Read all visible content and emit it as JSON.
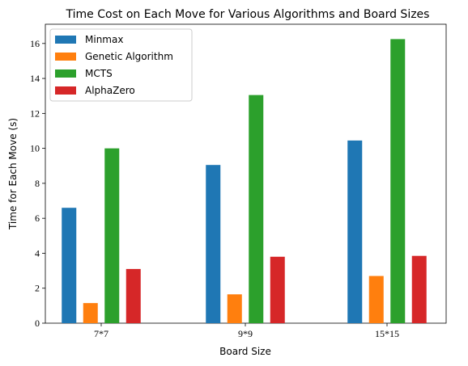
{
  "chart_data": {
    "type": "bar",
    "title": "Time Cost on Each Move for Various Algorithms and Board Sizes",
    "xlabel": "Board Size",
    "ylabel": "Time for Each Move (s)",
    "categories": [
      "7*7",
      "9*9",
      "15*15"
    ],
    "ylim": [
      0,
      17.1
    ],
    "yticks": [
      0,
      2,
      4,
      6,
      8,
      10,
      12,
      14,
      16
    ],
    "legend_position": "top-left",
    "grid": false,
    "series": [
      {
        "name": "Minmax",
        "color": "#1f77b4",
        "values": [
          6.6,
          9.05,
          10.45
        ]
      },
      {
        "name": "Genetic Algorithm",
        "color": "#ff7f0e",
        "values": [
          1.15,
          1.65,
          2.7
        ]
      },
      {
        "name": "MCTS",
        "color": "#2ca02c",
        "values": [
          10.0,
          13.05,
          16.25
        ]
      },
      {
        "name": "AlphaZero",
        "color": "#d62728",
        "values": [
          3.1,
          3.8,
          3.85
        ]
      }
    ]
  }
}
